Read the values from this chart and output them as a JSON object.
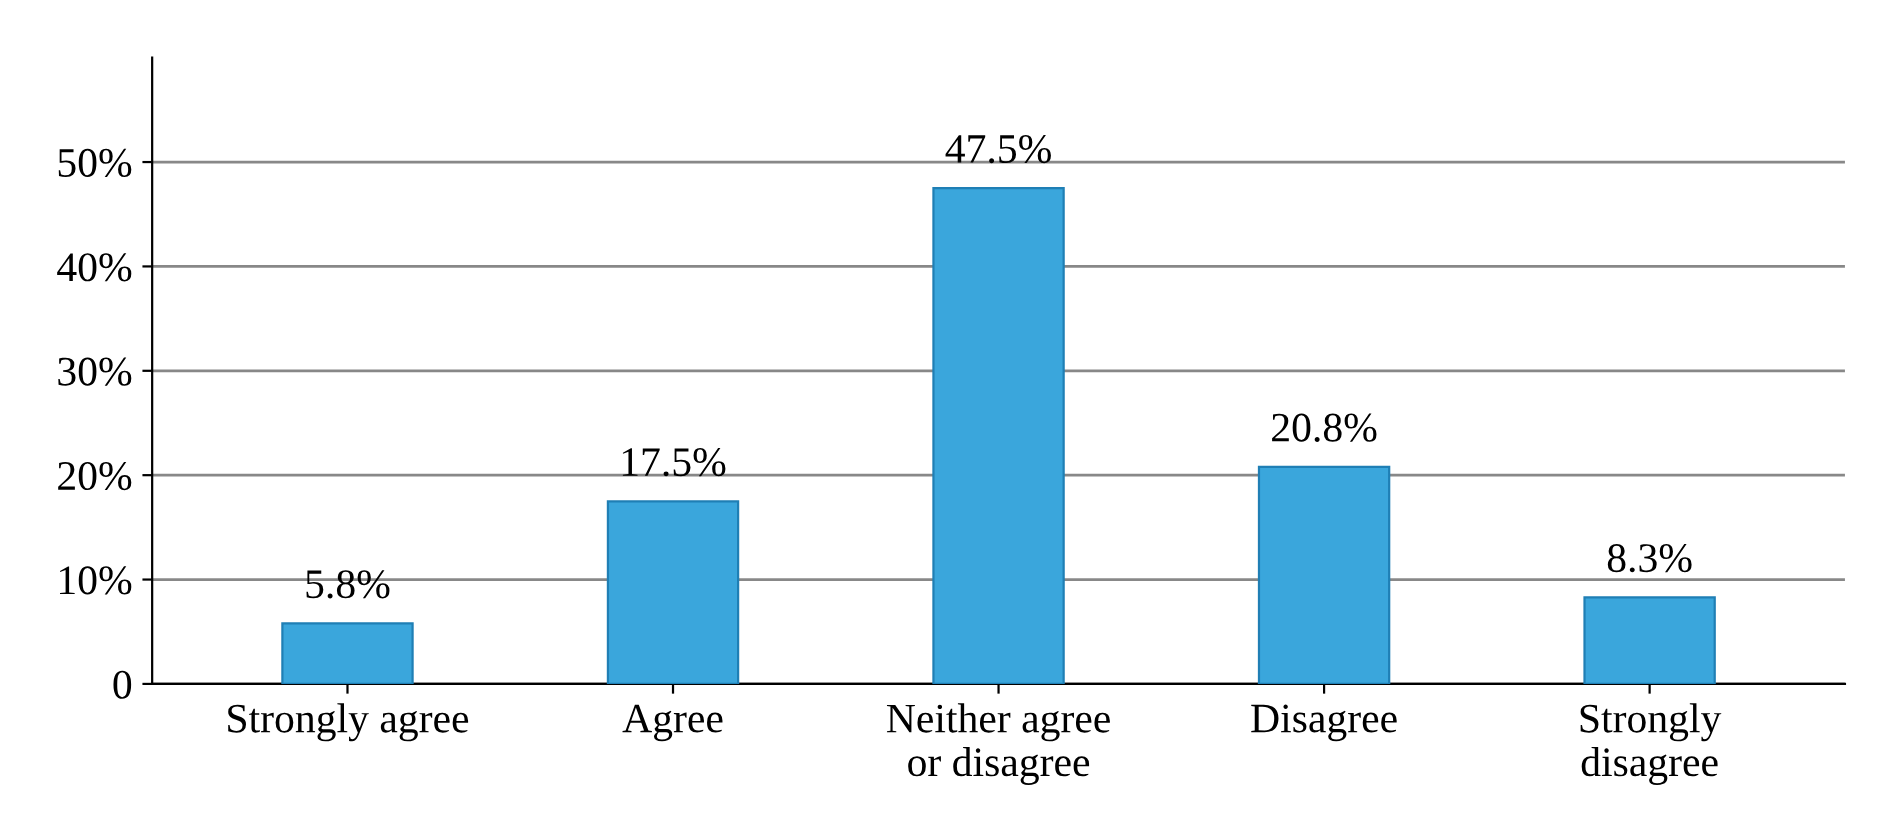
{
  "chart_data": {
    "type": "bar",
    "categories": [
      "Strongly agree",
      "Agree",
      "Neither agree\nor disagree",
      "Disagree",
      "Strongly\ndisagree"
    ],
    "values": [
      5.8,
      17.5,
      47.5,
      20.8,
      8.3
    ],
    "value_labels": [
      "5.8%",
      "17.5%",
      "47.5%",
      "20.8%",
      "8.3%"
    ],
    "color": "#3aa6dc",
    "ylim": [
      0,
      60
    ],
    "yticks": [
      0,
      {
        "value": 10,
        "label": "10%"
      },
      {
        "value": 20,
        "label": "20%"
      },
      {
        "value": 30,
        "label": "30%"
      },
      {
        "value": 40,
        "label": "40%"
      },
      {
        "value": 50,
        "label": "50%"
      }
    ],
    "grid": "y"
  }
}
